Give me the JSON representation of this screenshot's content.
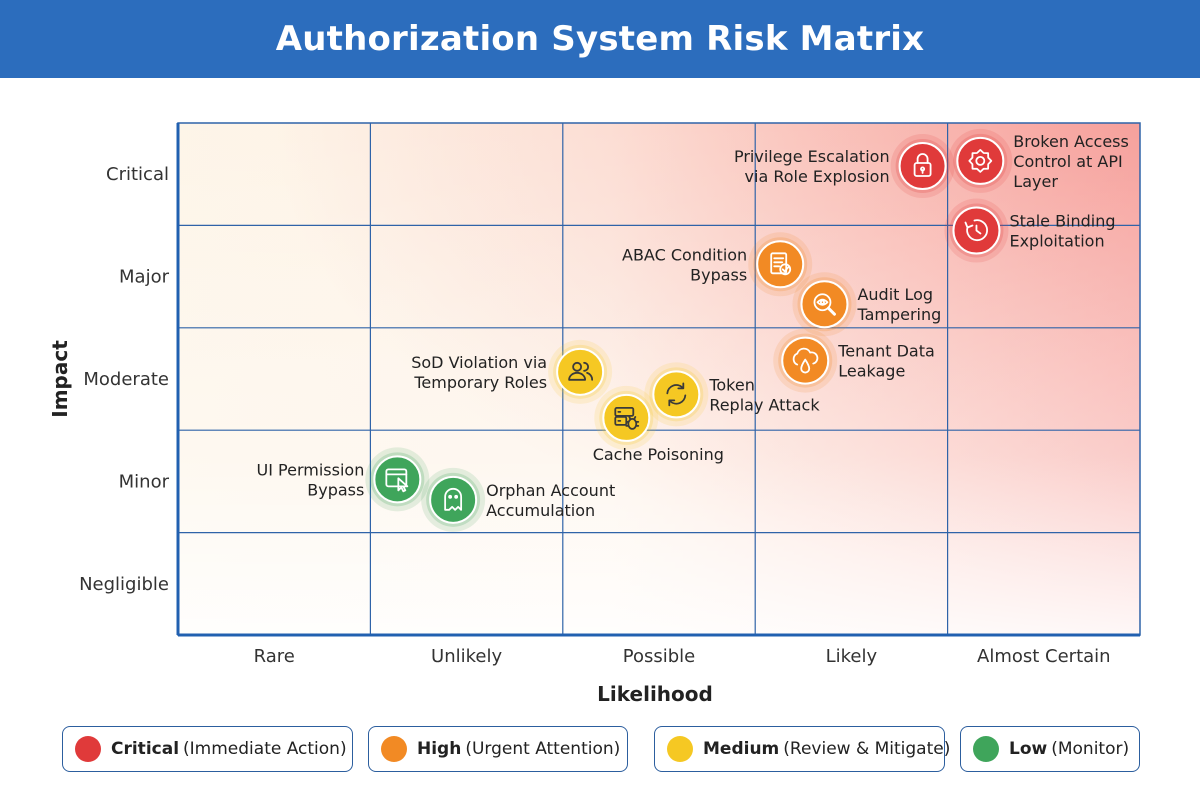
{
  "title": "Authorization System Risk Matrix",
  "chart_data": {
    "type": "scatter",
    "title": "Authorization System Risk Matrix",
    "xlabel": "Likelihood",
    "ylabel": "Impact",
    "x_categories": [
      "Rare",
      "Unlikely",
      "Possible",
      "Likely",
      "Almost Certain"
    ],
    "y_categories": [
      "Negligible",
      "Minor",
      "Moderate",
      "Major",
      "Critical"
    ],
    "xlim": [
      0,
      5
    ],
    "ylim": [
      0,
      5
    ],
    "grid": true,
    "legend_position": "bottom",
    "levels": [
      {
        "key": "critical",
        "label": "Critical",
        "desc": "(Immediate Action)",
        "color": "#e03a3a"
      },
      {
        "key": "high",
        "label": "High",
        "desc": "(Urgent Attention)",
        "color": "#f28a24"
      },
      {
        "key": "medium",
        "label": "Medium",
        "desc": "(Review & Mitigate)",
        "color": "#f5c823"
      },
      {
        "key": "low",
        "label": "Low",
        "desc": "(Monitor)",
        "color": "#3fa55b"
      }
    ],
    "points": [
      {
        "label": [
          "Privilege Escalation",
          "via Role Explosion"
        ],
        "x": 3.87,
        "y": 4.58,
        "level": "critical",
        "icon": "lock-icon",
        "label_side": "left"
      },
      {
        "label": [
          "Broken Access",
          "Control at API",
          "Layer"
        ],
        "x": 4.17,
        "y": 4.63,
        "level": "critical",
        "icon": "gear-icon",
        "label_side": "right"
      },
      {
        "label": [
          "Stale Binding",
          "Exploitation"
        ],
        "x": 4.15,
        "y": 3.95,
        "level": "critical",
        "icon": "clock-icon",
        "label_side": "right"
      },
      {
        "label": [
          "ABAC Condition",
          "Bypass"
        ],
        "x": 3.13,
        "y": 3.62,
        "level": "high",
        "icon": "policy-doc-icon",
        "label_side": "left"
      },
      {
        "label": [
          "Audit Log",
          "Tampering"
        ],
        "x": 3.36,
        "y": 3.23,
        "level": "high",
        "icon": "magnifier-eye-icon",
        "label_side": "right"
      },
      {
        "label": [
          "Tenant Data",
          "Leakage"
        ],
        "x": 3.26,
        "y": 2.68,
        "level": "high",
        "icon": "cloud-leak-icon",
        "label_side": "right"
      },
      {
        "label": [
          "SoD Violation via",
          "Temporary Roles"
        ],
        "x": 2.09,
        "y": 2.57,
        "level": "medium",
        "icon": "users-icon",
        "label_side": "left"
      },
      {
        "label": [
          "Token",
          "Replay Attack"
        ],
        "x": 2.59,
        "y": 2.35,
        "level": "medium",
        "icon": "refresh-icon",
        "label_side": "right"
      },
      {
        "label": [
          "Cache Poisoning"
        ],
        "x": 2.33,
        "y": 2.12,
        "level": "medium",
        "icon": "server-bug-icon",
        "label_side": "below"
      },
      {
        "label": [
          "UI Permission",
          "Bypass"
        ],
        "x": 1.14,
        "y": 1.52,
        "level": "low",
        "icon": "browser-cursor-icon",
        "label_side": "left"
      },
      {
        "label": [
          "Orphan Account",
          "Accumulation"
        ],
        "x": 1.43,
        "y": 1.32,
        "level": "low",
        "icon": "ghost-icon",
        "label_side": "right"
      }
    ]
  }
}
